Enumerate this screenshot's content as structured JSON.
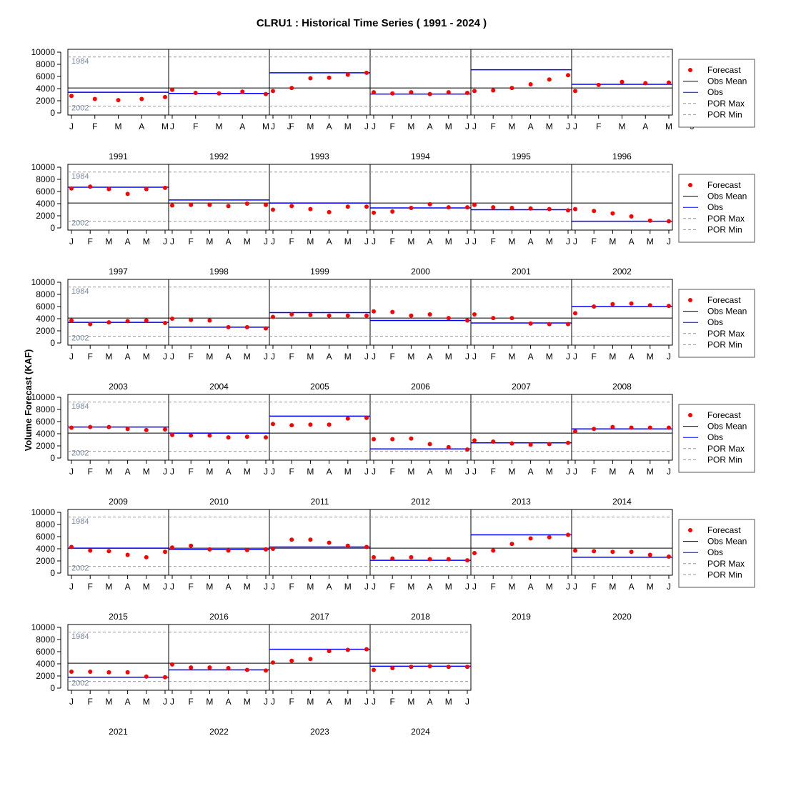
{
  "chart_data": {
    "type": "scatter",
    "title": "CLRU1 : Historical Time Series ( 1991 - 2024 )",
    "ylabel": "Volume Forecast (KAF)",
    "ylim": [
      0,
      10000
    ],
    "yticks": [
      "0",
      "2000",
      "4000",
      "6000",
      "8000",
      "10000"
    ],
    "obs_mean": 4100,
    "por_max": 9200,
    "por_min": 1100,
    "por_max_year_label": "1984",
    "por_min_year_label": "2002",
    "months_first_row": [
      "J",
      "F",
      "M",
      "A",
      "M"
    ],
    "months": [
      "J",
      "F",
      "M",
      "A",
      "M",
      "J"
    ],
    "legend": [
      "Forecast",
      "Obs Mean",
      "Obs",
      "POR Max",
      "POR Min"
    ],
    "colors": {
      "forecast": "#ff0000",
      "obs": "#0000ff",
      "mean": "#000000",
      "por": "#999999",
      "por_label": "#7a8aa0"
    },
    "years": [
      {
        "year": "1991",
        "obs": 3400,
        "forecast": [
          2800,
          2300,
          2100,
          2300,
          2600
        ]
      },
      {
        "year": "1992",
        "obs": 3200,
        "forecast": [
          3800,
          3300,
          3200,
          3500,
          3100
        ]
      },
      {
        "year": "1993",
        "obs": 6600,
        "forecast": [
          3600,
          4100,
          5700,
          5800,
          6300,
          6600
        ]
      },
      {
        "year": "1994",
        "obs": 3100,
        "forecast": [
          3400,
          3200,
          3400,
          3100,
          3400,
          3300
        ]
      },
      {
        "year": "1995",
        "obs": 7100,
        "forecast": [
          3600,
          3700,
          4100,
          4700,
          5500,
          6200
        ]
      },
      {
        "year": "1996",
        "obs": 4700,
        "forecast": [
          3600,
          4600,
          5100,
          4900,
          5000
        ]
      },
      {
        "year": "1997",
        "obs": 6700,
        "forecast": [
          6500,
          6800,
          6400,
          5600,
          6400,
          6600
        ]
      },
      {
        "year": "1998",
        "obs": 4600,
        "forecast": [
          3700,
          3800,
          3800,
          3600,
          4000,
          3800
        ]
      },
      {
        "year": "1999",
        "obs": 4100,
        "forecast": [
          3000,
          3600,
          3100,
          2600,
          3500,
          3500
        ]
      },
      {
        "year": "2000",
        "obs": 3300,
        "forecast": [
          2500,
          2700,
          3300,
          3900,
          3400,
          3400
        ]
      },
      {
        "year": "2001",
        "obs": 3000,
        "forecast": [
          3800,
          3400,
          3300,
          3200,
          3100,
          2900
        ]
      },
      {
        "year": "2002",
        "obs": 1100,
        "forecast": [
          3100,
          2800,
          2400,
          1900,
          1200,
          1100
        ]
      },
      {
        "year": "2003",
        "obs": 3400,
        "forecast": [
          3700,
          3100,
          3400,
          3600,
          3700,
          3300
        ]
      },
      {
        "year": "2004",
        "obs": 2600,
        "forecast": [
          4000,
          3800,
          3700,
          2600,
          2600,
          2400
        ]
      },
      {
        "year": "2005",
        "obs": 5000,
        "forecast": [
          4300,
          4700,
          4600,
          4500,
          4500,
          4500
        ]
      },
      {
        "year": "2006",
        "obs": 3700,
        "forecast": [
          5200,
          5100,
          4500,
          4700,
          4100,
          3700
        ]
      },
      {
        "year": "2007",
        "obs": 3300,
        "forecast": [
          4700,
          4100,
          4100,
          3200,
          3100,
          3100
        ]
      },
      {
        "year": "2008",
        "obs": 6000,
        "forecast": [
          4900,
          6000,
          6400,
          6500,
          6200,
          6100
        ]
      },
      {
        "year": "2009",
        "obs": 5100,
        "forecast": [
          5000,
          5100,
          5100,
          4800,
          4600,
          4700
        ]
      },
      {
        "year": "2010",
        "obs": 4100,
        "forecast": [
          3800,
          3700,
          3700,
          3400,
          3500,
          3400
        ]
      },
      {
        "year": "2011",
        "obs": 6900,
        "forecast": [
          5600,
          5400,
          5500,
          5500,
          6500,
          6600
        ]
      },
      {
        "year": "2012",
        "obs": 1500,
        "forecast": [
          3100,
          3100,
          3200,
          2300,
          1800,
          1400
        ]
      },
      {
        "year": "2013",
        "obs": 2500,
        "forecast": [
          2900,
          2700,
          2400,
          2200,
          2300,
          2500
        ]
      },
      {
        "year": "2014",
        "obs": 4800,
        "forecast": [
          4400,
          4800,
          5100,
          5000,
          5000,
          5000
        ]
      },
      {
        "year": "2015",
        "obs": 4100,
        "forecast": [
          4300,
          3700,
          3600,
          3000,
          2600,
          3500
        ]
      },
      {
        "year": "2016",
        "obs": 3900,
        "forecast": [
          4200,
          4500,
          3900,
          3700,
          3800,
          3900
        ]
      },
      {
        "year": "2017",
        "obs": 4300,
        "forecast": [
          4000,
          5500,
          5500,
          5000,
          4500,
          4300
        ]
      },
      {
        "year": "2018",
        "obs": 2100,
        "forecast": [
          2600,
          2400,
          2600,
          2300,
          2300,
          2100
        ]
      },
      {
        "year": "2019",
        "obs": 6300,
        "forecast": [
          3300,
          3700,
          4800,
          5700,
          5900,
          6300
        ]
      },
      {
        "year": "2020",
        "obs": 2600,
        "forecast": [
          3700,
          3600,
          3500,
          3500,
          3000,
          2700
        ]
      },
      {
        "year": "2021",
        "obs": 1800,
        "forecast": [
          2700,
          2700,
          2600,
          2600,
          1900,
          1800
        ]
      },
      {
        "year": "2022",
        "obs": 3000,
        "forecast": [
          3900,
          3400,
          3400,
          3300,
          3000,
          2900
        ]
      },
      {
        "year": "2023",
        "obs": 6400,
        "forecast": [
          4200,
          4500,
          4800,
          6100,
          6300,
          6400
        ]
      },
      {
        "year": "2024",
        "obs": 3600,
        "forecast": [
          3000,
          3300,
          3500,
          3600,
          3500,
          3500
        ]
      }
    ]
  }
}
